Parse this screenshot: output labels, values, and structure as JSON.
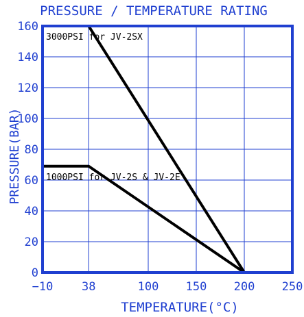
{
  "chart_data": {
    "type": "line",
    "title": "PRESSURE / TEMPERATURE RATING",
    "xlabel": "TEMPERATURE(°C)",
    "ylabel": "PRESSURE(BAR)",
    "x_ticks": [
      -10,
      38,
      100,
      150,
      200,
      250
    ],
    "y_ticks": [
      0,
      20,
      40,
      60,
      80,
      100,
      120,
      140,
      160
    ],
    "xlim": [
      -10,
      250
    ],
    "ylim": [
      0,
      160
    ],
    "grid": true,
    "series": [
      {
        "name": "3000PSI for JV-2SX",
        "x": [
          -10,
          38,
          200
        ],
        "y": [
          160,
          160,
          0
        ]
      },
      {
        "name": "1000PSI for JV-2S & JV-2E",
        "x": [
          -10,
          38,
          200
        ],
        "y": [
          69,
          69,
          0
        ]
      }
    ],
    "colors": {
      "axis": "#1f3fd0",
      "grid": "#1f3fd0",
      "line": "#000000"
    }
  }
}
